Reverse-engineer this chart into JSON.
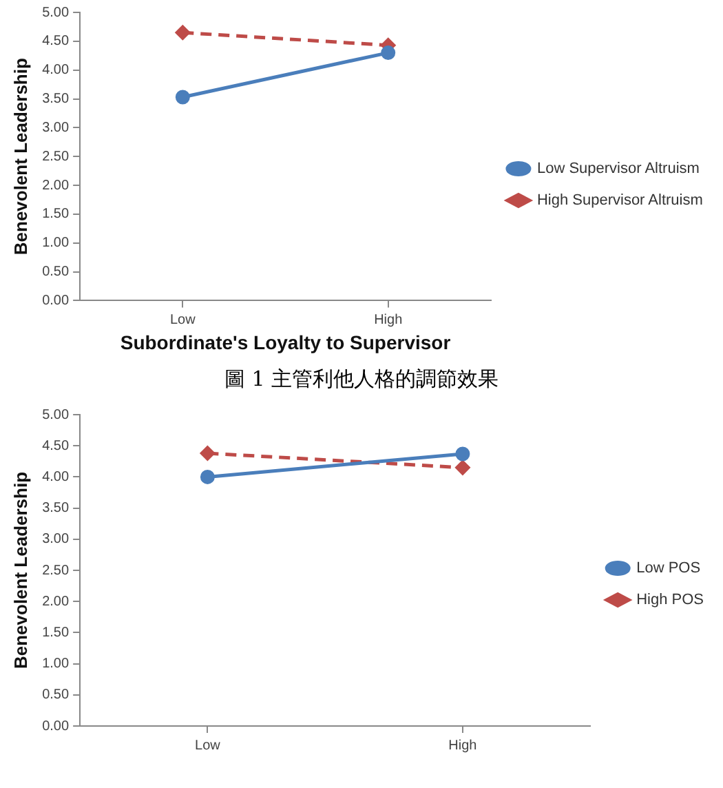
{
  "chart_data": [
    {
      "type": "line",
      "categories": [
        "Low",
        "High"
      ],
      "xlabel": "Subordinate's Loyalty to Supervisor",
      "ylabel": "Benevolent Leadership",
      "ylim": [
        0,
        5
      ],
      "yticks": [
        {
          "value": 0,
          "label": "0.00"
        },
        {
          "value": 0.5,
          "label": "0.50"
        },
        {
          "value": 1,
          "label": "1.00"
        },
        {
          "value": 1.5,
          "label": "1.50"
        },
        {
          "value": 2,
          "label": "2.00"
        },
        {
          "value": 2.5,
          "label": "2.50"
        },
        {
          "value": 3,
          "label": "3.00"
        },
        {
          "value": 3.5,
          "label": "3.50"
        },
        {
          "value": 4,
          "label": "4.00"
        },
        {
          "value": 4.5,
          "label": "4.50"
        },
        {
          "value": 5,
          "label": "5.00"
        }
      ],
      "grid": false,
      "legend": "right",
      "annotations": [
        "圖 1 主管利他人格的調節效果"
      ],
      "series": [
        {
          "name": "Low Supervisor Altruism",
          "color": "#4a7ebb",
          "values": [
            3.53,
            4.3
          ],
          "marker": "circle",
          "line_style": "solid"
        },
        {
          "name": "High Supervisor Altruism",
          "color": "#be4b48",
          "values": [
            4.65,
            4.43
          ],
          "marker": "diamond",
          "line_style": "dashed"
        }
      ]
    },
    {
      "type": "line",
      "categories": [
        "Low",
        "High"
      ],
      "ylabel": "Benevolent Leadership",
      "ylim": [
        0,
        5
      ],
      "yticks": [
        {
          "value": 0,
          "label": "0.00"
        },
        {
          "value": 0.5,
          "label": "0.50"
        },
        {
          "value": 1,
          "label": "1.00"
        },
        {
          "value": 1.5,
          "label": "1.50"
        },
        {
          "value": 2,
          "label": "2.00"
        },
        {
          "value": 2.5,
          "label": "2.50"
        },
        {
          "value": 3,
          "label": "3.00"
        },
        {
          "value": 3.5,
          "label": "3.50"
        },
        {
          "value": 4,
          "label": "4.00"
        },
        {
          "value": 4.5,
          "label": "4.50"
        },
        {
          "value": 5,
          "label": "5.00"
        }
      ],
      "grid": false,
      "legend": "right",
      "series": [
        {
          "name": "Low POS",
          "color": "#4a7ebb",
          "values": [
            4.0,
            4.37
          ],
          "marker": "circle",
          "line_style": "solid"
        },
        {
          "name": "High POS",
          "color": "#be4b48",
          "values": [
            4.38,
            4.15
          ],
          "marker": "diamond",
          "line_style": "dashed"
        }
      ]
    }
  ]
}
